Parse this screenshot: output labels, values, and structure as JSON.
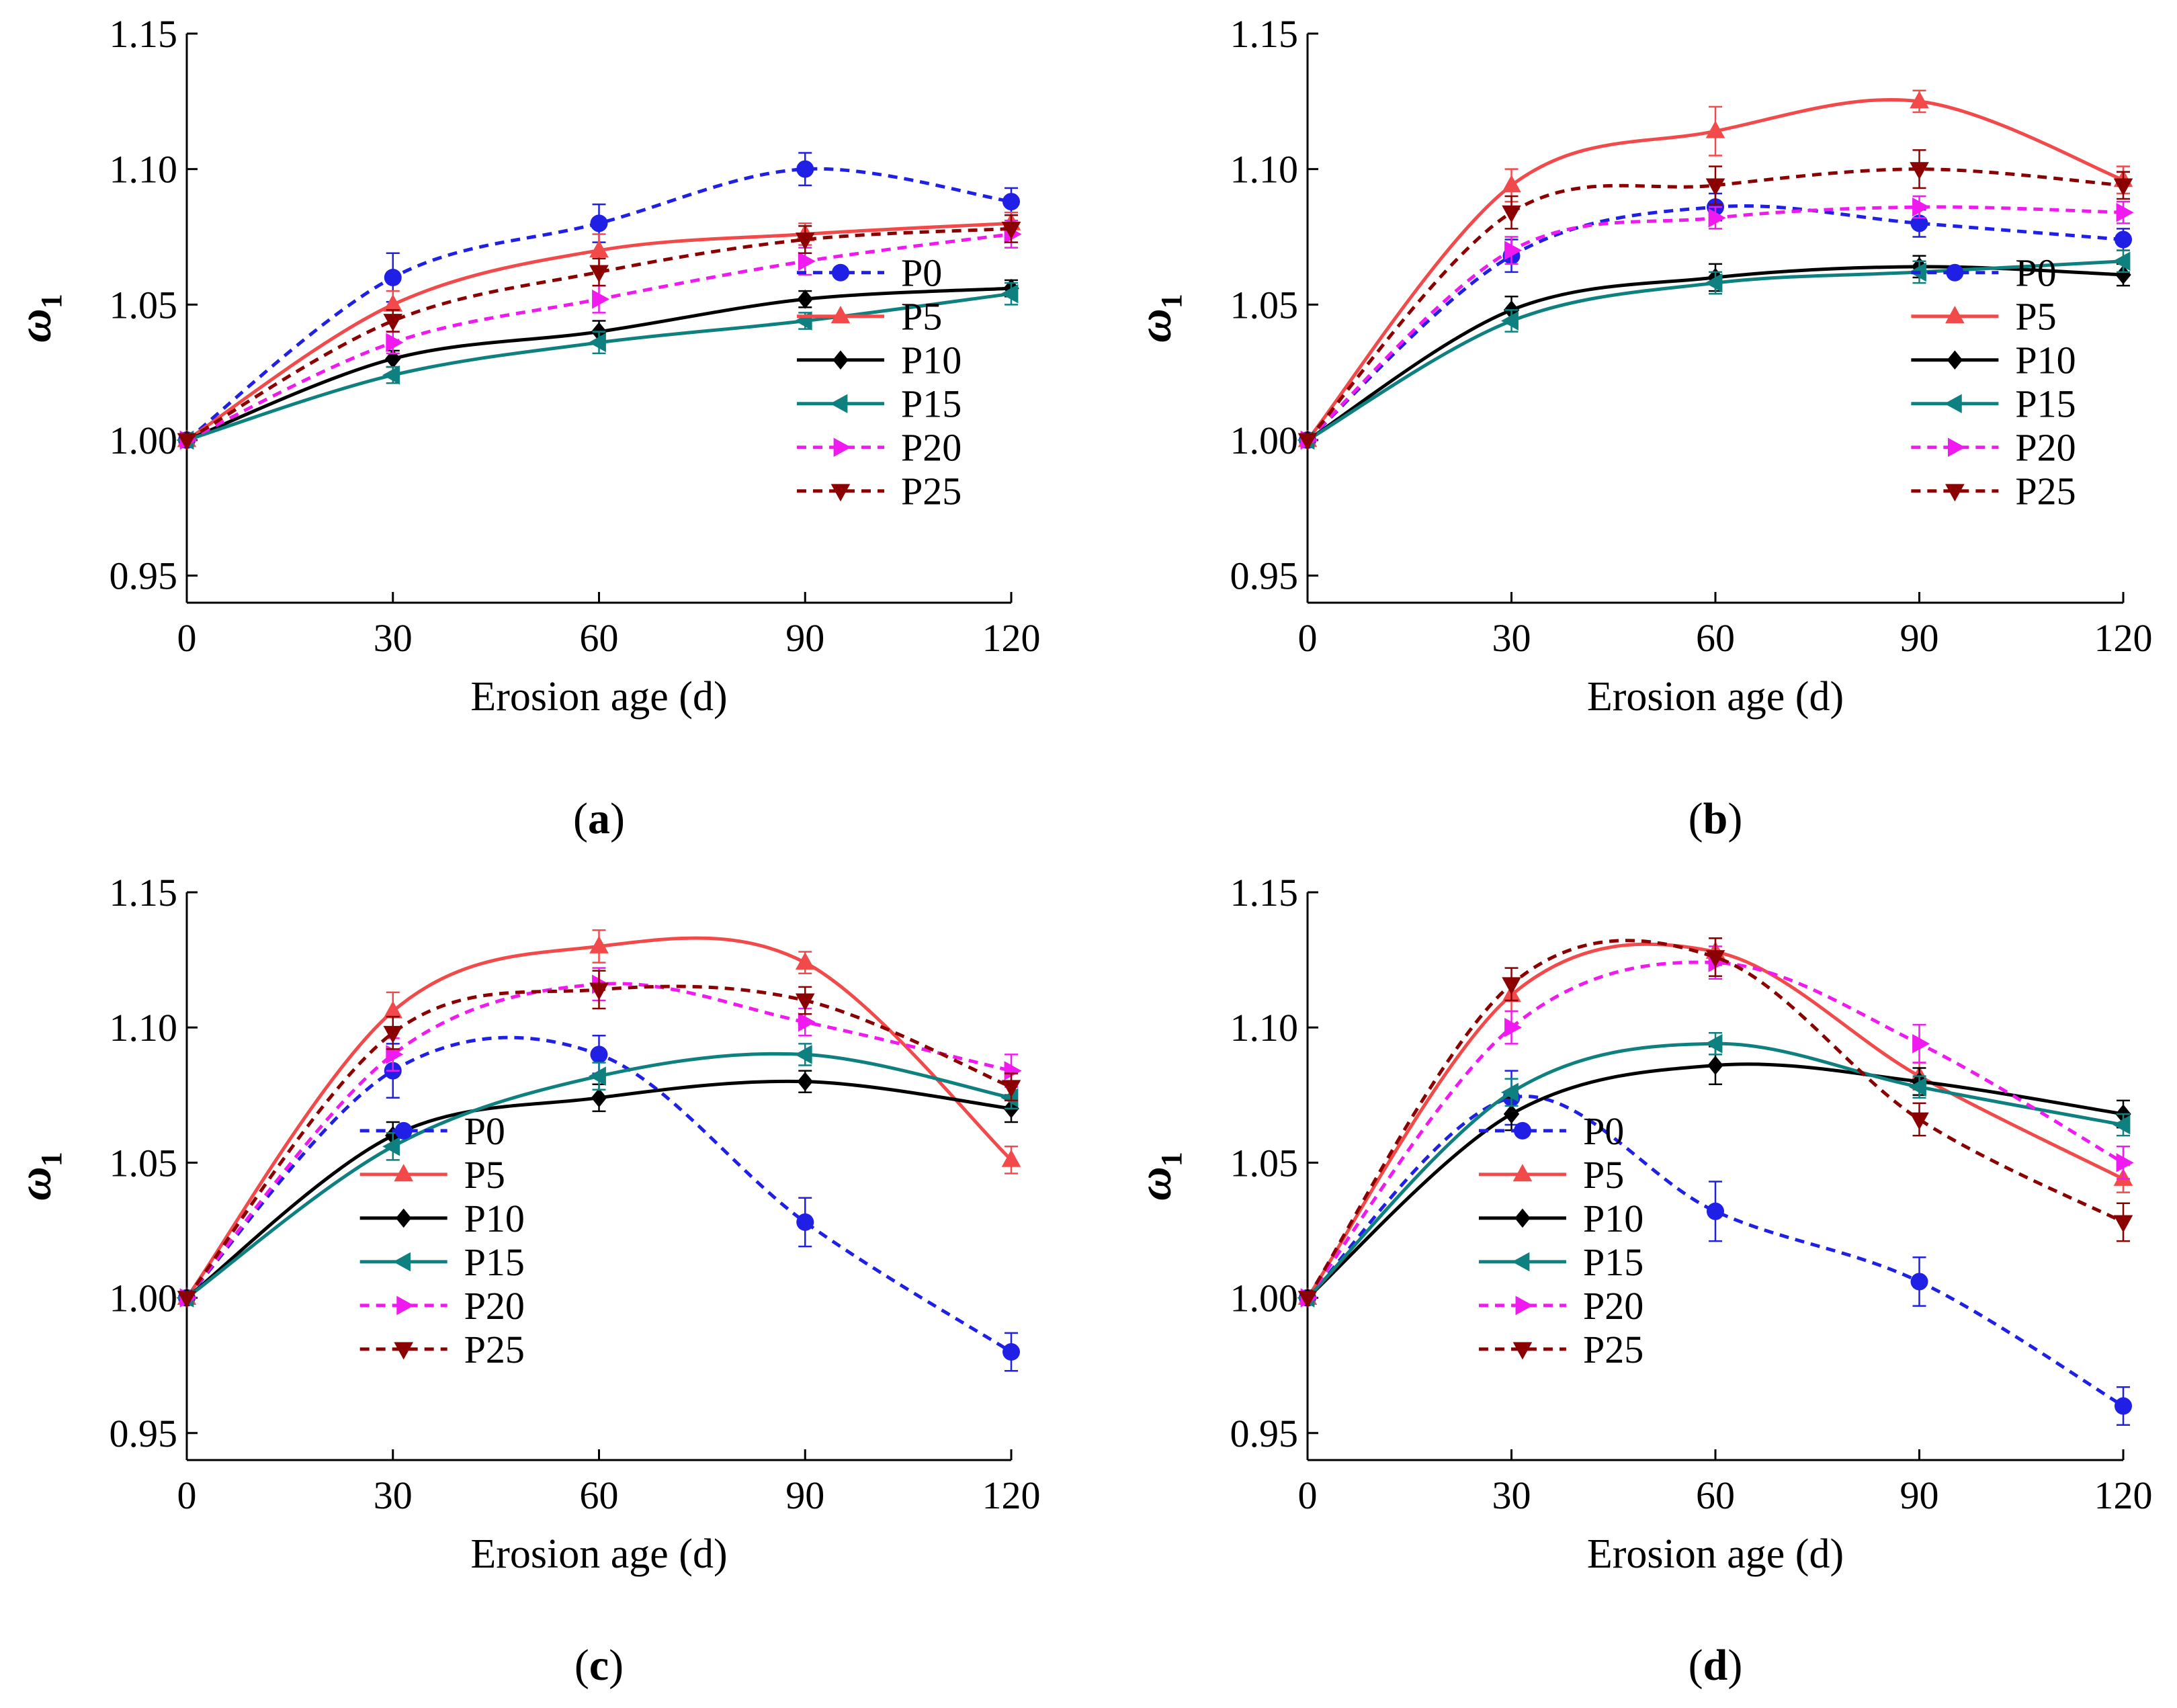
{
  "figure": {
    "x_axis_label": "Erosion age (d)",
    "y_axis_symbol": "ω",
    "y_axis_subscript": "1"
  },
  "chart_data": [
    {
      "type": "line",
      "panel_label": "(a)",
      "panel_letter": "a",
      "xlabel": "Erosion age (d)",
      "ylabel": "ω1",
      "xlim": [
        0,
        120
      ],
      "ylim": [
        0.94,
        1.15
      ],
      "x_ticks": [
        "0",
        "30",
        "60",
        "90",
        "120"
      ],
      "y_ticks": [
        "0.95",
        "1.00",
        "1.05",
        "1.10",
        "1.15"
      ],
      "legend_position": "lower-right",
      "x": [
        0,
        30,
        60,
        90,
        120
      ],
      "series": [
        {
          "name": "P0",
          "color": "#1f1fe6",
          "dash": true,
          "marker": "circle",
          "values": [
            1.0,
            1.06,
            1.08,
            1.1,
            1.088
          ],
          "errors": [
            0,
            0.009,
            0.007,
            0.006,
            0.005
          ]
        },
        {
          "name": "P5",
          "color": "#f24a4a",
          "dash": false,
          "marker": "triangle-up",
          "values": [
            1.0,
            1.05,
            1.07,
            1.076,
            1.08
          ],
          "errors": [
            0,
            0.005,
            0.006,
            0.004,
            0.004
          ]
        },
        {
          "name": "P10",
          "color": "#000000",
          "dash": false,
          "marker": "diamond",
          "values": [
            1.0,
            1.03,
            1.04,
            1.052,
            1.056
          ],
          "errors": [
            0,
            0.003,
            0.004,
            0.003,
            0.003
          ]
        },
        {
          "name": "P15",
          "color": "#0f8080",
          "dash": false,
          "marker": "triangle-left",
          "values": [
            1.0,
            1.024,
            1.036,
            1.044,
            1.054
          ],
          "errors": [
            0,
            0.003,
            0.004,
            0.003,
            0.004
          ]
        },
        {
          "name": "P20",
          "color": "#f01af0",
          "dash": true,
          "marker": "triangle-right",
          "values": [
            1.0,
            1.036,
            1.052,
            1.066,
            1.076
          ],
          "errors": [
            0,
            0.004,
            0.005,
            0.005,
            0.005
          ]
        },
        {
          "name": "P25",
          "color": "#8b0000",
          "dash": true,
          "marker": "triangle-down",
          "values": [
            1.0,
            1.044,
            1.062,
            1.074,
            1.078
          ],
          "errors": [
            0,
            0.004,
            0.005,
            0.005,
            0.005
          ]
        }
      ]
    },
    {
      "type": "line",
      "panel_label": "(b)",
      "panel_letter": "b",
      "xlabel": "Erosion age (d)",
      "ylabel": "ω1",
      "xlim": [
        0,
        120
      ],
      "ylim": [
        0.94,
        1.15
      ],
      "x_ticks": [
        "0",
        "30",
        "60",
        "90",
        "120"
      ],
      "y_ticks": [
        "0.95",
        "1.00",
        "1.05",
        "1.10",
        "1.15"
      ],
      "legend_position": "lower-right",
      "x": [
        0,
        30,
        60,
        90,
        120
      ],
      "series": [
        {
          "name": "P0",
          "color": "#1f1fe6",
          "dash": true,
          "marker": "circle",
          "values": [
            1.0,
            1.068,
            1.086,
            1.08,
            1.074
          ],
          "errors": [
            0,
            0.006,
            0.005,
            0.005,
            0.004
          ]
        },
        {
          "name": "P5",
          "color": "#f24a4a",
          "dash": false,
          "marker": "triangle-up",
          "values": [
            1.0,
            1.094,
            1.114,
            1.125,
            1.096
          ],
          "errors": [
            0,
            0.006,
            0.009,
            0.004,
            0.005
          ]
        },
        {
          "name": "P10",
          "color": "#000000",
          "dash": false,
          "marker": "diamond",
          "values": [
            1.0,
            1.048,
            1.06,
            1.064,
            1.061
          ],
          "errors": [
            0,
            0.005,
            0.005,
            0.004,
            0.004
          ]
        },
        {
          "name": "P15",
          "color": "#0f8080",
          "dash": false,
          "marker": "triangle-left",
          "values": [
            1.0,
            1.044,
            1.058,
            1.062,
            1.066
          ],
          "errors": [
            0,
            0.004,
            0.004,
            0.004,
            0.004
          ]
        },
        {
          "name": "P20",
          "color": "#f01af0",
          "dash": true,
          "marker": "triangle-right",
          "values": [
            1.0,
            1.07,
            1.082,
            1.086,
            1.084
          ],
          "errors": [
            0,
            0.005,
            0.004,
            0.004,
            0.004
          ]
        },
        {
          "name": "P25",
          "color": "#8b0000",
          "dash": true,
          "marker": "triangle-down",
          "values": [
            1.0,
            1.084,
            1.094,
            1.1,
            1.094
          ],
          "errors": [
            0,
            0.006,
            0.007,
            0.007,
            0.005
          ]
        }
      ]
    },
    {
      "type": "line",
      "panel_label": "(c)",
      "panel_letter": "c",
      "xlabel": "Erosion age (d)",
      "ylabel": "ω1",
      "xlim": [
        0,
        120
      ],
      "ylim": [
        0.94,
        1.15
      ],
      "x_ticks": [
        "0",
        "30",
        "60",
        "90",
        "120"
      ],
      "y_ticks": [
        "0.95",
        "1.00",
        "1.05",
        "1.10",
        "1.15"
      ],
      "legend_position": "lower-left",
      "x": [
        0,
        30,
        60,
        90,
        120
      ],
      "series": [
        {
          "name": "P0",
          "color": "#1f1fe6",
          "dash": true,
          "marker": "circle",
          "values": [
            1.0,
            1.084,
            1.09,
            1.028,
            0.98
          ],
          "errors": [
            0,
            0.01,
            0.007,
            0.009,
            0.007
          ]
        },
        {
          "name": "P5",
          "color": "#f24a4a",
          "dash": false,
          "marker": "triangle-up",
          "values": [
            1.0,
            1.106,
            1.13,
            1.124,
            1.051
          ],
          "errors": [
            0,
            0.007,
            0.006,
            0.004,
            0.005
          ]
        },
        {
          "name": "P10",
          "color": "#000000",
          "dash": false,
          "marker": "diamond",
          "values": [
            1.0,
            1.06,
            1.074,
            1.08,
            1.07
          ],
          "errors": [
            0,
            0.005,
            0.005,
            0.004,
            0.005
          ]
        },
        {
          "name": "P15",
          "color": "#0f8080",
          "dash": false,
          "marker": "triangle-left",
          "values": [
            1.0,
            1.056,
            1.082,
            1.09,
            1.074
          ],
          "errors": [
            0,
            0.005,
            0.005,
            0.004,
            0.004
          ]
        },
        {
          "name": "P20",
          "color": "#f01af0",
          "dash": true,
          "marker": "triangle-right",
          "values": [
            1.0,
            1.09,
            1.116,
            1.102,
            1.084
          ],
          "errors": [
            0,
            0.006,
            0.006,
            0.005,
            0.006
          ]
        },
        {
          "name": "P25",
          "color": "#8b0000",
          "dash": true,
          "marker": "triangle-down",
          "values": [
            1.0,
            1.098,
            1.114,
            1.11,
            1.078
          ],
          "errors": [
            0,
            0.006,
            0.007,
            0.005,
            0.005
          ]
        }
      ]
    },
    {
      "type": "line",
      "panel_label": "(d)",
      "panel_letter": "d",
      "xlabel": "Erosion age (d)",
      "ylabel": "ω1",
      "xlim": [
        0,
        120
      ],
      "ylim": [
        0.94,
        1.15
      ],
      "x_ticks": [
        "0",
        "30",
        "60",
        "90",
        "120"
      ],
      "y_ticks": [
        "0.95",
        "1.00",
        "1.05",
        "1.10",
        "1.15"
      ],
      "legend_position": "lower-left",
      "x": [
        0,
        30,
        60,
        90,
        120
      ],
      "series": [
        {
          "name": "P0",
          "color": "#1f1fe6",
          "dash": true,
          "marker": "circle",
          "values": [
            1.0,
            1.074,
            1.032,
            1.006,
            0.96
          ],
          "errors": [
            0,
            0.01,
            0.011,
            0.009,
            0.007
          ]
        },
        {
          "name": "P5",
          "color": "#f24a4a",
          "dash": false,
          "marker": "triangle-up",
          "values": [
            1.0,
            1.112,
            1.128,
            1.082,
            1.044
          ],
          "errors": [
            0,
            0.006,
            0.005,
            0.005,
            0.005
          ]
        },
        {
          "name": "P10",
          "color": "#000000",
          "dash": false,
          "marker": "diamond",
          "values": [
            1.0,
            1.068,
            1.086,
            1.08,
            1.068
          ],
          "errors": [
            0,
            0.006,
            0.007,
            0.005,
            0.005
          ]
        },
        {
          "name": "P15",
          "color": "#0f8080",
          "dash": false,
          "marker": "triangle-left",
          "values": [
            1.0,
            1.076,
            1.094,
            1.078,
            1.064
          ],
          "errors": [
            0,
            0.005,
            0.004,
            0.004,
            0.004
          ]
        },
        {
          "name": "P20",
          "color": "#f01af0",
          "dash": true,
          "marker": "triangle-right",
          "values": [
            1.0,
            1.1,
            1.124,
            1.094,
            1.05
          ],
          "errors": [
            0,
            0.006,
            0.006,
            0.007,
            0.006
          ]
        },
        {
          "name": "P25",
          "color": "#8b0000",
          "dash": true,
          "marker": "triangle-down",
          "values": [
            1.0,
            1.116,
            1.126,
            1.066,
            1.028
          ],
          "errors": [
            0,
            0.006,
            0.007,
            0.006,
            0.007
          ]
        }
      ]
    }
  ]
}
